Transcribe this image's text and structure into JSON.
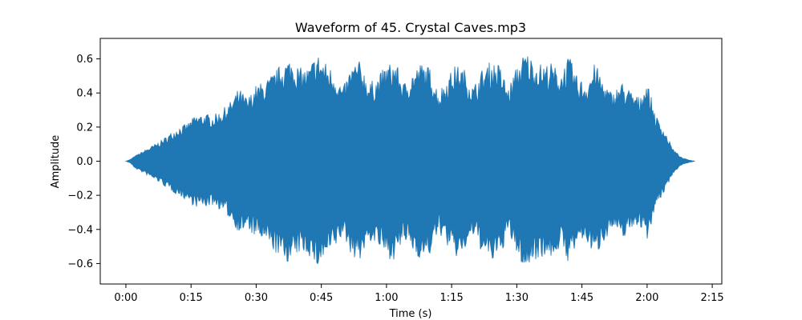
{
  "chart_data": {
    "type": "area",
    "title": "Waveform of 45. Crystal Caves.mp3",
    "xlabel": "Time (s)",
    "ylabel": "Amplitude",
    "xlim": [
      -5.9,
      137.2
    ],
    "ylim": [
      -0.72,
      0.72
    ],
    "x_ticks": [
      {
        "value": 0,
        "label": "0:00"
      },
      {
        "value": 15,
        "label": "0:15"
      },
      {
        "value": 30,
        "label": "0:30"
      },
      {
        "value": 45,
        "label": "0:45"
      },
      {
        "value": 60,
        "label": "1:00"
      },
      {
        "value": 75,
        "label": "1:15"
      },
      {
        "value": 90,
        "label": "1:30"
      },
      {
        "value": 105,
        "label": "1:45"
      },
      {
        "value": 120,
        "label": "2:00"
      },
      {
        "value": 135,
        "label": "2:15"
      }
    ],
    "y_ticks": [
      {
        "value": 0.6,
        "label": "0.6"
      },
      {
        "value": 0.4,
        "label": "0.4"
      },
      {
        "value": 0.2,
        "label": "0.2"
      },
      {
        "value": 0.0,
        "label": "0.0"
      },
      {
        "value": -0.2,
        "label": "−0.2"
      },
      {
        "value": -0.4,
        "label": "−0.4"
      },
      {
        "value": -0.6,
        "label": "−0.6"
      }
    ],
    "grid": false,
    "color": "#1f77b4",
    "series": [
      {
        "x": [
          0,
          1,
          2,
          4,
          6,
          8,
          10,
          12,
          14,
          16,
          18,
          20,
          22,
          24,
          26,
          28,
          30,
          32,
          34,
          36,
          38,
          40,
          42,
          44,
          46,
          48,
          50,
          52,
          54,
          56,
          58,
          60,
          62,
          64,
          66,
          68,
          70,
          72,
          74,
          76,
          78,
          80,
          82,
          84,
          86,
          88,
          90,
          92,
          94,
          96,
          98,
          100,
          102,
          104,
          106,
          108,
          110,
          112,
          114,
          116,
          118,
          120,
          122,
          124,
          126,
          128,
          130,
          131
        ],
        "upper": [
          0.0,
          0.01,
          0.03,
          0.06,
          0.09,
          0.12,
          0.16,
          0.2,
          0.22,
          0.27,
          0.28,
          0.27,
          0.3,
          0.35,
          0.43,
          0.37,
          0.45,
          0.47,
          0.52,
          0.58,
          0.61,
          0.55,
          0.55,
          0.64,
          0.58,
          0.53,
          0.43,
          0.57,
          0.59,
          0.46,
          0.5,
          0.57,
          0.59,
          0.46,
          0.53,
          0.58,
          0.55,
          0.41,
          0.5,
          0.57,
          0.54,
          0.44,
          0.54,
          0.59,
          0.57,
          0.43,
          0.56,
          0.65,
          0.59,
          0.57,
          0.58,
          0.52,
          0.62,
          0.49,
          0.47,
          0.58,
          0.47,
          0.4,
          0.47,
          0.42,
          0.38,
          0.47,
          0.27,
          0.18,
          0.07,
          0.02,
          0.005,
          0.0
        ],
        "lower": [
          0.0,
          -0.01,
          -0.04,
          -0.07,
          -0.1,
          -0.13,
          -0.17,
          -0.2,
          -0.23,
          -0.27,
          -0.27,
          -0.26,
          -0.29,
          -0.34,
          -0.42,
          -0.41,
          -0.45,
          -0.48,
          -0.53,
          -0.58,
          -0.6,
          -0.54,
          -0.55,
          -0.63,
          -0.57,
          -0.52,
          -0.44,
          -0.56,
          -0.58,
          -0.47,
          -0.5,
          -0.57,
          -0.58,
          -0.47,
          -0.53,
          -0.58,
          -0.55,
          -0.42,
          -0.5,
          -0.57,
          -0.53,
          -0.44,
          -0.54,
          -0.6,
          -0.57,
          -0.43,
          -0.55,
          -0.65,
          -0.58,
          -0.56,
          -0.57,
          -0.51,
          -0.6,
          -0.49,
          -0.47,
          -0.57,
          -0.47,
          -0.4,
          -0.46,
          -0.41,
          -0.37,
          -0.46,
          -0.27,
          -0.18,
          -0.07,
          -0.02,
          -0.005,
          0.0
        ]
      }
    ]
  }
}
